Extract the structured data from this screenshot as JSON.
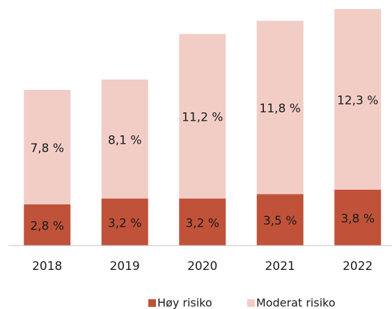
{
  "chart_data": {
    "type": "stacked_bar",
    "categories": [
      "2018",
      "2019",
      "2020",
      "2021",
      "2022"
    ],
    "series": [
      {
        "name": "Høy risiko",
        "color": "#c0523a",
        "values": [
          2.8,
          3.2,
          3.2,
          3.5,
          3.8
        ],
        "value_labels": [
          "2,8 %",
          "3,2 %",
          "3,2 %",
          "3,5 %",
          "3,8 %"
        ]
      },
      {
        "name": "Moderat risiko",
        "color": "#f2cdc6",
        "values": [
          7.8,
          8.1,
          11.2,
          11.8,
          12.3
        ],
        "value_labels": [
          "7,8 %",
          "8,1 %",
          "11,2 %",
          "11,8 %",
          "12,3 %"
        ]
      }
    ],
    "legend": "bottom"
  }
}
